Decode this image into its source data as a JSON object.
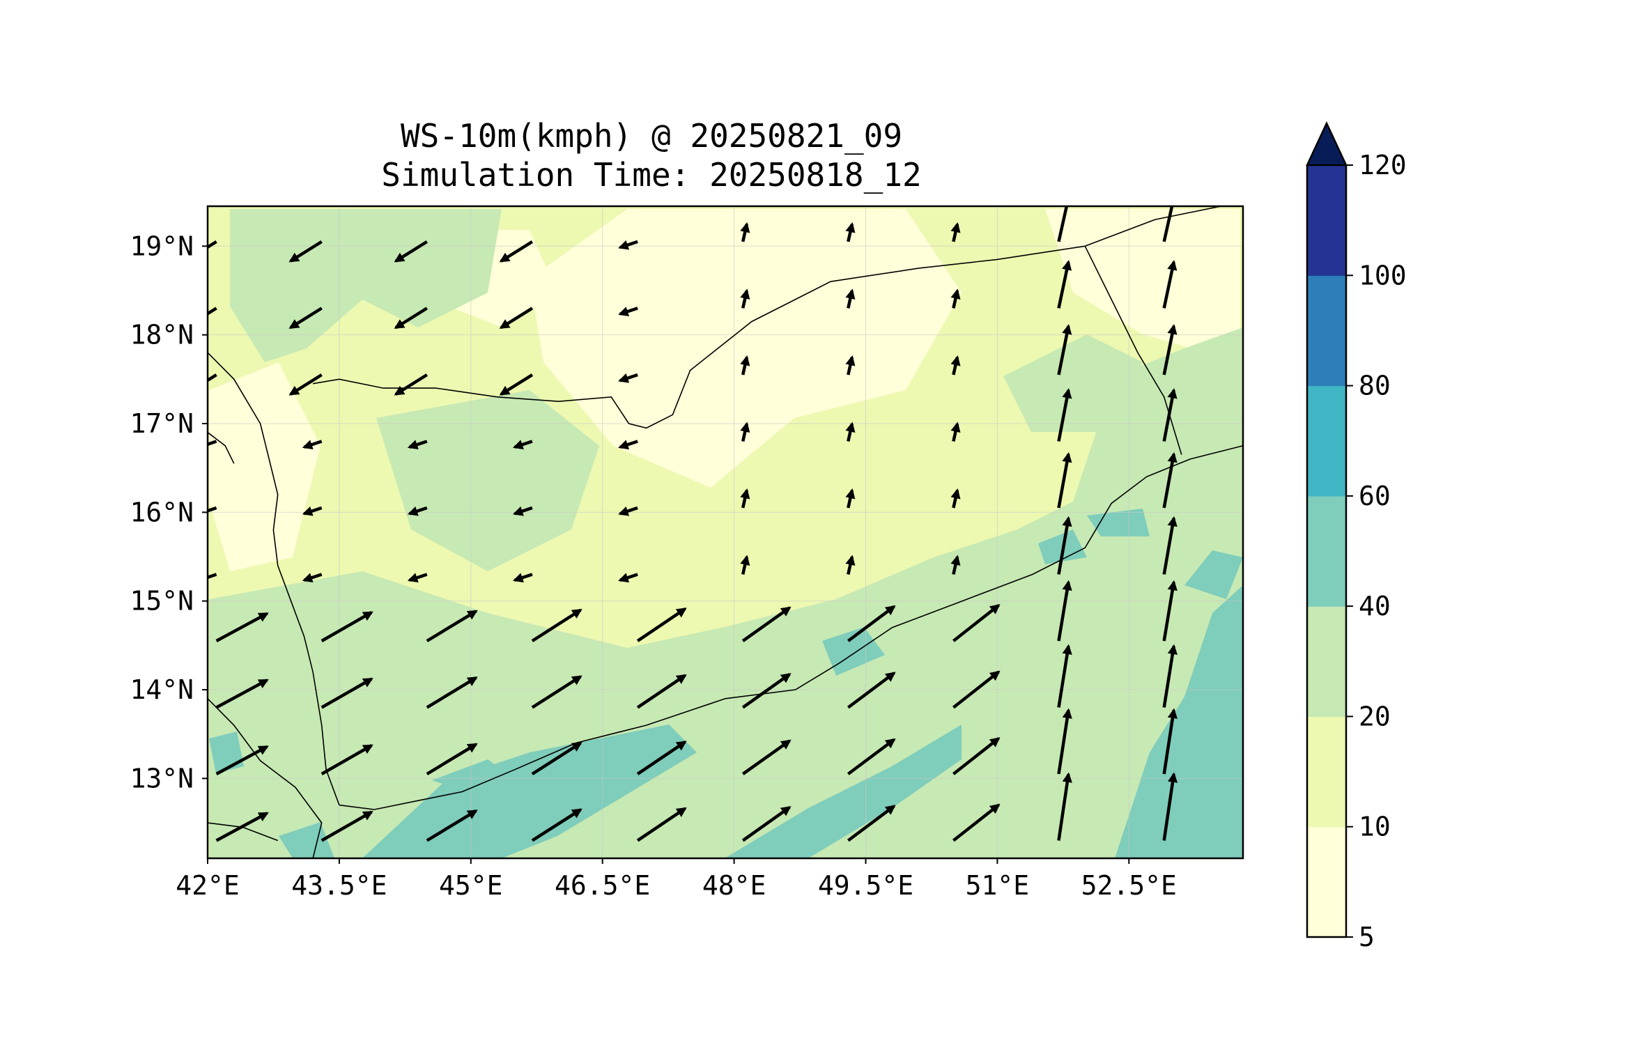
{
  "figure": {
    "title_line1": "WS-10m(kmph) @ 20250821_09",
    "title_line2": "Simulation Time: 20250818_12"
  },
  "map": {
    "lon_range": [
      42.0,
      53.8
    ],
    "lat_range": [
      12.1,
      19.45
    ],
    "lon_ticks": [
      {
        "value": 42.0,
        "label": "42°E"
      },
      {
        "value": 43.5,
        "label": "43.5°E"
      },
      {
        "value": 45.0,
        "label": "45°E"
      },
      {
        "value": 46.5,
        "label": "46.5°E"
      },
      {
        "value": 48.0,
        "label": "48°E"
      },
      {
        "value": 49.5,
        "label": "49.5°E"
      },
      {
        "value": 51.0,
        "label": "51°E"
      },
      {
        "value": 52.5,
        "label": "52.5°E"
      }
    ],
    "lat_ticks": [
      {
        "value": 19,
        "label": "19°N"
      },
      {
        "value": 18,
        "label": "18°N"
      },
      {
        "value": 17,
        "label": "17°N"
      },
      {
        "value": 16,
        "label": "16°N"
      },
      {
        "value": 15,
        "label": "15°N"
      },
      {
        "value": 14,
        "label": "14°N"
      },
      {
        "value": 13,
        "label": "13°N"
      }
    ],
    "grid": true,
    "field": "10 m wind speed (kmph), filled contours with wind vectors",
    "dominant_level_colors": [
      "#ffffd9",
      "#edf8b1",
      "#c7e9b4",
      "#7fcdbb"
    ]
  },
  "colorbar": {
    "levels": [
      5,
      10,
      20,
      40,
      60,
      80,
      100,
      120
    ],
    "labels": [
      "5",
      "10",
      "20",
      "40",
      "60",
      "80",
      "100",
      "120"
    ],
    "colors": [
      "#ffffd9",
      "#edf8b1",
      "#c7e9b4",
      "#7fcdbb",
      "#41b6c4",
      "#2c7fb8",
      "#253494"
    ],
    "extend_color": "#081d58",
    "extend": "max"
  },
  "chart_data": {
    "type": "heatmap",
    "title": "WS-10m(kmph) @ 20250821_09\nSimulation Time: 20250818_12",
    "xlabel": "",
    "ylabel": "",
    "xlim": [
      42.0,
      53.8
    ],
    "ylim": [
      12.1,
      19.45
    ],
    "colorbar_levels": [
      5,
      10,
      20,
      40,
      60,
      80,
      100,
      120
    ],
    "wind_vectors_sample": [
      {
        "lon": 42.5,
        "lat": 13.0,
        "u": 2.5,
        "v": 1.6
      },
      {
        "lon": 44.5,
        "lat": 13.0,
        "u": 2.6,
        "v": 1.5
      },
      {
        "lon": 46.0,
        "lat": 13.5,
        "u": 2.2,
        "v": 2.2
      },
      {
        "lon": 47.5,
        "lat": 14.3,
        "u": 1.8,
        "v": 2.0
      },
      {
        "lon": 49.2,
        "lat": 13.4,
        "u": 3.2,
        "v": 1.7
      },
      {
        "lon": 51.5,
        "lat": 13.0,
        "u": 0.3,
        "v": 3.4
      },
      {
        "lon": 53.0,
        "lat": 13.5,
        "u": 0.8,
        "v": 3.0
      },
      {
        "lon": 44.5,
        "lat": 18.2,
        "u": -1.6,
        "v": -1.1
      },
      {
        "lon": 47.0,
        "lat": 16.7,
        "u": -0.6,
        "v": 0.0
      },
      {
        "lon": 50.5,
        "lat": 17.7,
        "u": 0.0,
        "v": 1.0
      }
    ]
  }
}
